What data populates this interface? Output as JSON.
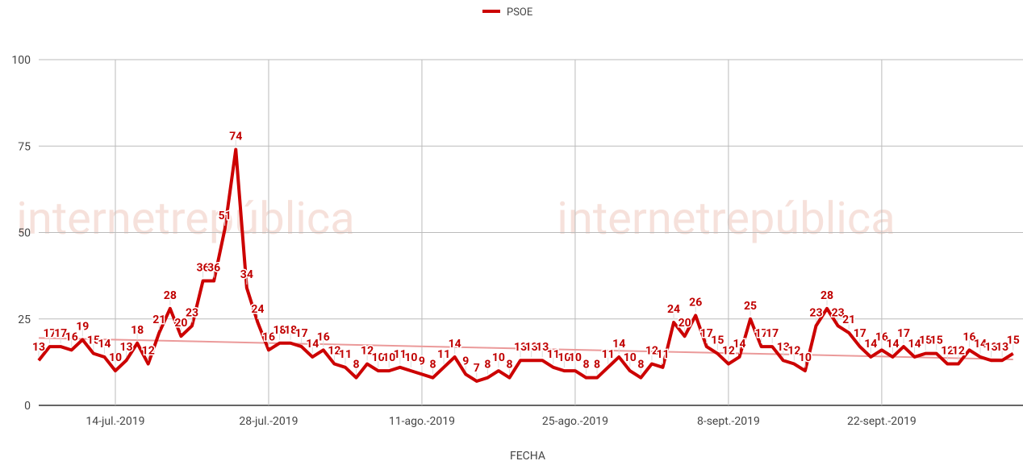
{
  "chart_data": {
    "type": "line",
    "watermark": "internetrepública",
    "x_label": "FECHA",
    "categories": [
      null,
      null,
      null,
      null,
      null,
      null,
      null,
      "14-jul.-2019",
      null,
      null,
      null,
      null,
      null,
      null,
      null,
      null,
      null,
      null,
      null,
      null,
      null,
      "28-jul.-2019",
      null,
      null,
      null,
      null,
      null,
      null,
      null,
      null,
      null,
      null,
      null,
      null,
      null,
      "11-ago.-2019",
      null,
      null,
      null,
      null,
      null,
      null,
      null,
      null,
      null,
      null,
      null,
      null,
      null,
      "25-ago.-2019",
      null,
      null,
      null,
      null,
      null,
      null,
      null,
      null,
      null,
      null,
      null,
      null,
      null,
      "8-sept.-2019",
      null,
      null,
      null,
      null,
      null,
      null,
      null,
      null,
      null,
      null,
      null,
      null,
      null,
      "22-sept.-2019",
      null,
      null,
      null,
      null,
      null,
      null,
      null,
      null,
      null,
      null,
      null,
      null
    ],
    "series": [
      {
        "name": "PSOE",
        "color": "#cc0000",
        "values": [
          13,
          17,
          17,
          16,
          19,
          15,
          14,
          10,
          13,
          18,
          12,
          21,
          28,
          20,
          23,
          36,
          36,
          51,
          74,
          34,
          24,
          16,
          18,
          18,
          17,
          14,
          16,
          12,
          11,
          8,
          12,
          10,
          10,
          11,
          10,
          9,
          8,
          11,
          14,
          9,
          7,
          8,
          10,
          8,
          13,
          13,
          13,
          11,
          10,
          10,
          8,
          8,
          11,
          14,
          10,
          8,
          12,
          11,
          24,
          20,
          26,
          17,
          15,
          12,
          14,
          25,
          17,
          17,
          13,
          12,
          10,
          23,
          28,
          23,
          21,
          17,
          14,
          16,
          14,
          17,
          14,
          15,
          15,
          12,
          12,
          16,
          14,
          13,
          13,
          15
        ]
      }
    ],
    "trendline": {
      "color": "#eb9a9a",
      "values": [
        19.5,
        13.3
      ]
    },
    "ylim": [
      0,
      100
    ],
    "yticks": [
      0,
      25,
      50,
      75,
      100
    ],
    "grid": true,
    "legend": "top"
  }
}
